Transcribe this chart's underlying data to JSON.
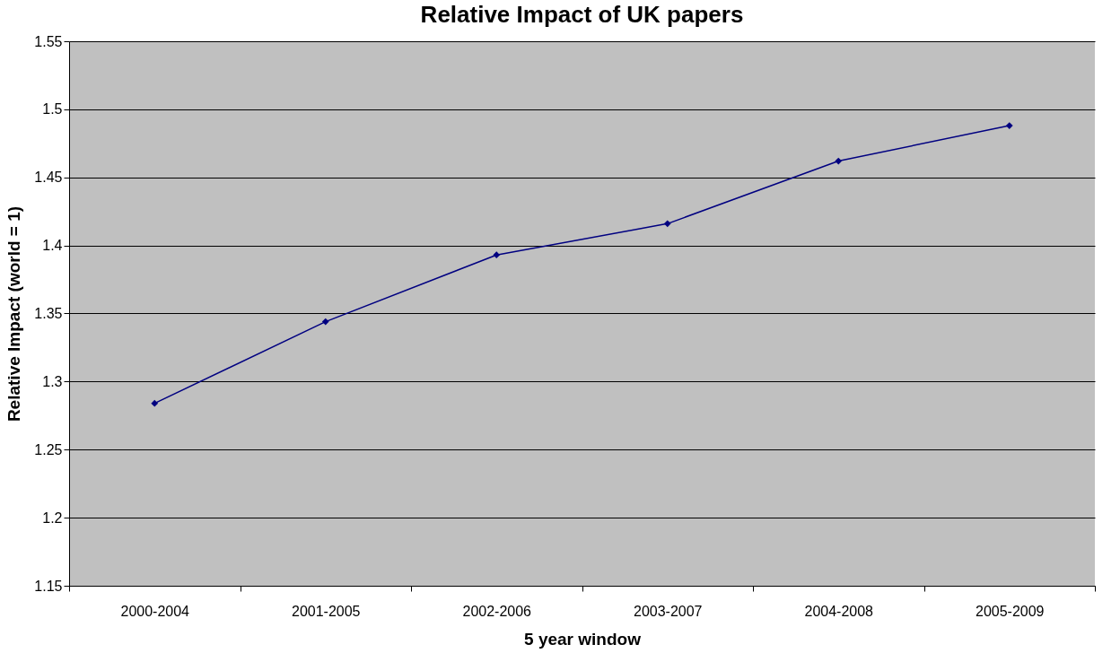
{
  "chart_data": {
    "type": "line",
    "title": "Relative Impact of UK papers",
    "xlabel": "5 year window",
    "ylabel": "Relative Impact (world = 1)",
    "categories": [
      "2000-2004",
      "2001-2005",
      "2002-2006",
      "2003-2007",
      "2004-2008",
      "2005-2009"
    ],
    "series": [
      {
        "color": "#000080",
        "values": [
          1.284,
          1.344,
          1.393,
          1.416,
          1.462,
          1.488
        ]
      }
    ],
    "ylim": [
      1.15,
      1.55
    ],
    "yticks": [
      1.15,
      1.2,
      1.25,
      1.3,
      1.35,
      1.4,
      1.45,
      1.5,
      1.55
    ],
    "grid": "y",
    "marker": "diamond",
    "line_style": "solid"
  }
}
